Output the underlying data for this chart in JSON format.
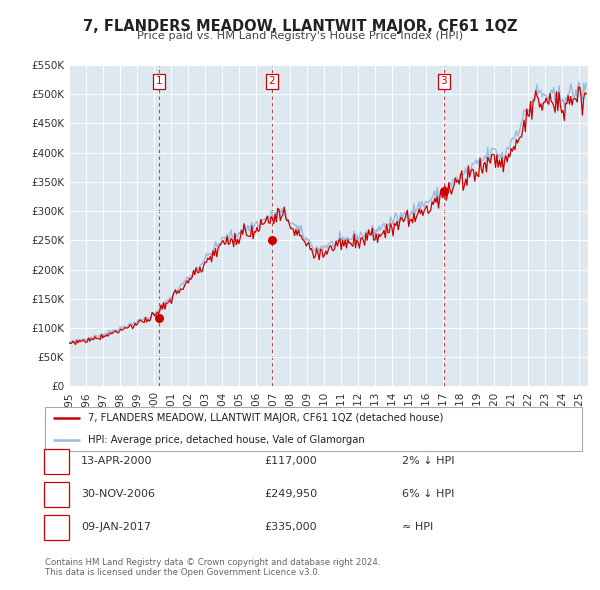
{
  "title": "7, FLANDERS MEADOW, LLANTWIT MAJOR, CF61 1QZ",
  "subtitle": "Price paid vs. HM Land Registry's House Price Index (HPI)",
  "ylim": [
    0,
    550000
  ],
  "yticks": [
    0,
    50000,
    100000,
    150000,
    200000,
    250000,
    300000,
    350000,
    400000,
    450000,
    500000,
    550000
  ],
  "ytick_labels": [
    "£0",
    "£50K",
    "£100K",
    "£150K",
    "£200K",
    "£250K",
    "£300K",
    "£350K",
    "£400K",
    "£450K",
    "£500K",
    "£550K"
  ],
  "xlim_start": 1995.0,
  "xlim_end": 2025.5,
  "xticks": [
    1995,
    1996,
    1997,
    1998,
    1999,
    2000,
    2001,
    2002,
    2003,
    2004,
    2005,
    2006,
    2007,
    2008,
    2009,
    2010,
    2011,
    2012,
    2013,
    2014,
    2015,
    2016,
    2017,
    2018,
    2019,
    2020,
    2021,
    2022,
    2023,
    2024,
    2025
  ],
  "sale_color": "#cc0000",
  "hpi_color": "#99bbdd",
  "sale_dot_color": "#cc0000",
  "vline_color": "#cc0000",
  "background_color": "#dde8f0",
  "grid_color": "#ffffff",
  "legend_sale_label": "7, FLANDERS MEADOW, LLANTWIT MAJOR, CF61 1QZ (detached house)",
  "legend_hpi_label": "HPI: Average price, detached house, Vale of Glamorgan",
  "transactions": [
    {
      "num": 1,
      "date": 2000.28,
      "price": 117000,
      "label": "1"
    },
    {
      "num": 2,
      "date": 2006.92,
      "price": 249950,
      "label": "2"
    },
    {
      "num": 3,
      "date": 2017.03,
      "price": 335000,
      "label": "3"
    }
  ],
  "table_rows": [
    {
      "num": "1",
      "date": "13-APR-2000",
      "price": "£117,000",
      "hpi_rel": "2% ↓ HPI"
    },
    {
      "num": "2",
      "date": "30-NOV-2006",
      "price": "£249,950",
      "hpi_rel": "6% ↓ HPI"
    },
    {
      "num": "3",
      "date": "09-JAN-2017",
      "price": "£335,000",
      "hpi_rel": "≈ HPI"
    }
  ],
  "footnote": "Contains HM Land Registry data © Crown copyright and database right 2024.\nThis data is licensed under the Open Government Licence v3.0."
}
